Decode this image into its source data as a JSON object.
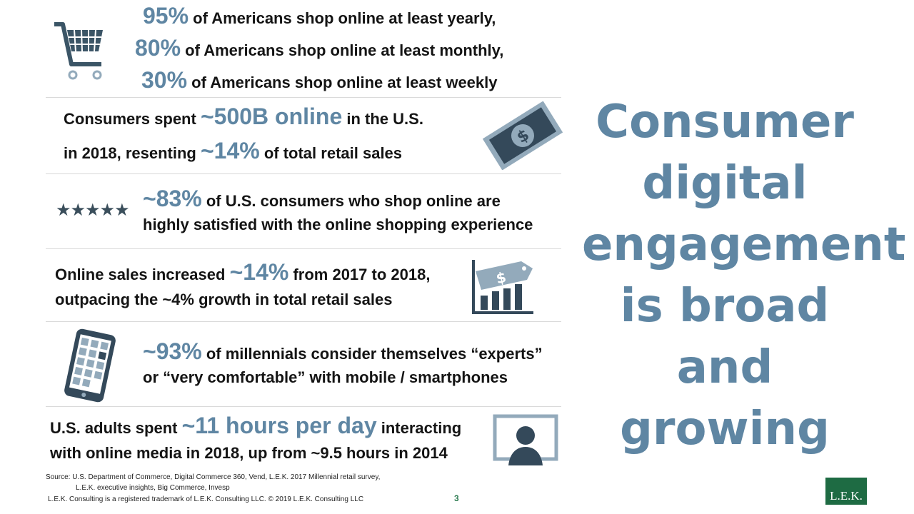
{
  "row1": {
    "lines": [
      {
        "stat": "95%",
        "text": "of Americans shop online at least yearly,"
      },
      {
        "stat": "80%",
        "text": "of Americans shop online at least monthly,"
      },
      {
        "stat": "30%",
        "text": "of Americans shop online at least weekly"
      }
    ],
    "icon": "shopping-cart-icon"
  },
  "row2": {
    "pre": "Consumers spent",
    "stat1": "~500B online",
    "mid": "in the U.S.",
    "line2_pre": "in 2018, resenting",
    "stat2": "~14%",
    "line2_post": "of total retail sales",
    "icon": "dollar-bill-icon"
  },
  "row3": {
    "stars": "★★★★★",
    "stat": "~83%",
    "text1": "of U.S. consumers who shop online are",
    "text2": "highly satisfied with the online shopping experience"
  },
  "row4": {
    "pre": "Online sales increased",
    "stat": "~14%",
    "post": "from 2017 to 2018,",
    "line2": "outpacing the ~4% growth in total retail sales",
    "icon": "price-tag-chart-icon",
    "tag_symbol": "$"
  },
  "row5": {
    "stat": "~93%",
    "text1": "of millennials consider themselves “experts”",
    "text2": "or “very comfortable” with mobile / smartphones",
    "icon": "smartphone-icon"
  },
  "row6": {
    "pre": "U.S. adults spent",
    "stat": "~11 hours per day",
    "post": "interacting",
    "line2": "with online media in 2018, up from ~9.5 hours in 2014",
    "icon": "user-screen-icon"
  },
  "headline": [
    "Consumer",
    "digital",
    "engagement",
    "is broad and",
    "growing"
  ],
  "source": {
    "label": "Source:",
    "line1": "U.S. Department of Commerce, Digital Commerce 360, Vend, L.E.K. 2017 Millennial retail survey,",
    "line2": "L.E.K. executive insights, Big Commerce, Invesp"
  },
  "footer": "L.E.K. Consulting is a registered trademark of L.E.K. Consulting LLC. © 2019 L.E.K. Consulting LLC",
  "page_number": "3",
  "logo": "L.E.K.",
  "colors": {
    "accent": "#5f86a3",
    "icon_dark": "#34495a",
    "logo_green": "#1e6b43"
  }
}
